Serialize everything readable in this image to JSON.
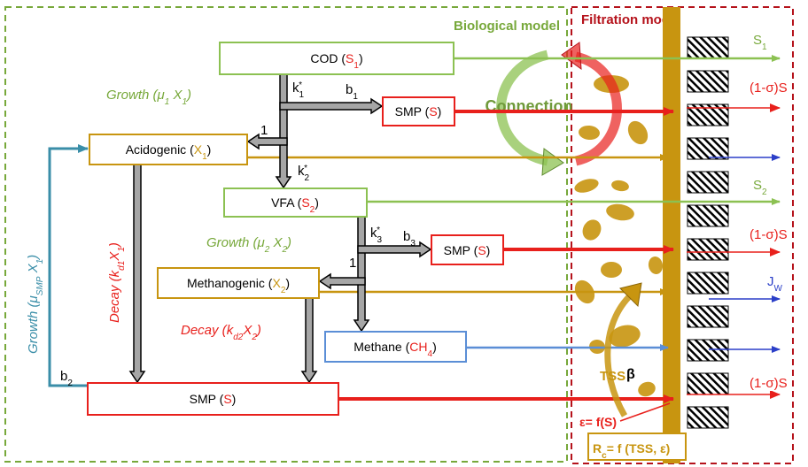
{
  "titles": {
    "biological": "Biological model",
    "filtration": "Filtration model"
  },
  "boxes": {
    "cod": [
      "COD (",
      "S",
      "1",
      ")"
    ],
    "smp_1": [
      "SMP (",
      "S",
      ")"
    ],
    "acidogenic": [
      "Acidogenic (",
      "X",
      "1",
      ")"
    ],
    "vfa": [
      "VFA (",
      "S",
      "2",
      ")"
    ],
    "smp_2": [
      "SMP (",
      "S",
      ")"
    ],
    "methanogenic": [
      "Methanogenic (",
      "X",
      "2",
      ")"
    ],
    "methane": [
      "Methane (",
      "CH",
      "4",
      ")"
    ],
    "smp_3": [
      "SMP (",
      "S",
      ")"
    ]
  },
  "labels": {
    "growth_1": [
      "Growth (",
      "μ",
      "1",
      " X",
      "1",
      ")"
    ],
    "k1": [
      "k",
      "1",
      "*"
    ],
    "b1": [
      "b",
      "1"
    ],
    "one_a": "1",
    "k2": [
      "k",
      "2",
      "*"
    ],
    "growth_2": [
      "Growth (",
      "μ",
      "2",
      " X",
      "2",
      ")"
    ],
    "k3": [
      "k",
      "3",
      "*"
    ],
    "b3": [
      "b",
      "3"
    ],
    "one_b": "1",
    "decay_1": [
      "Decay (",
      "k",
      "d1",
      "X",
      "1",
      ")"
    ],
    "decay_2": [
      "Decay (",
      "k",
      "d2",
      "X",
      "2",
      ")"
    ],
    "growth_smp": [
      "Growth (",
      "μ",
      "SMP",
      " X",
      "1",
      ")"
    ],
    "b2": [
      "b",
      "2"
    ],
    "connection": "Connection",
    "s1": [
      "S",
      "1"
    ],
    "loss_1": "(1-σ)S",
    "s2": [
      "S",
      "2"
    ],
    "loss_2": "(1-σ)S",
    "jw": [
      "J",
      "W"
    ],
    "loss_3": "(1-σ)S",
    "tss": "TSS",
    "beta": "β",
    "epsilon": "ε= f(S)",
    "rc": [
      "R",
      "c",
      "= f (TSS, ε)"
    ]
  }
}
